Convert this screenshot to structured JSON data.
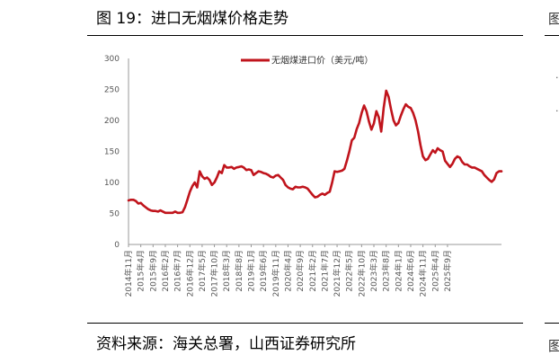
{
  "figure": {
    "title": "图 19：进口无烟煤价格走势",
    "source": "资料来源：海关总署，山西证券研究所",
    "right_edge_glyph": "图",
    "right_edge_marks": [
      "·",
      "·"
    ]
  },
  "chart_data": {
    "type": "line",
    "title": "",
    "xlabel": "",
    "ylabel": "",
    "ylim": [
      0,
      300
    ],
    "yticks": [
      0,
      50,
      100,
      150,
      200,
      250,
      300
    ],
    "grid": false,
    "legend_position": "top-center",
    "x_tick_labels": [
      "2014年11月",
      "2015年4月",
      "2015年9月",
      "2016年2月",
      "2016年7月",
      "2016年12月",
      "2017年5月",
      "2017年10月",
      "2018年3月",
      "2018年8月",
      "2019年1月",
      "2019年6月",
      "2019年11月",
      "2020年4月",
      "2020年9月",
      "2021年2月",
      "2021年7月",
      "2021年12月",
      "2022年5月",
      "2022年10月",
      "2023年3月",
      "2023年8月",
      "2024年1月",
      "2024年6月",
      "2024年11月",
      "2025年4月",
      "2025年9月"
    ],
    "series": [
      {
        "name": "无烟煤进口价（美元/吨）",
        "color": "#c0141c",
        "start": "2014年11月",
        "end": "2025年9月",
        "frequency": "monthly",
        "values": [
          71,
          72,
          72,
          70,
          66,
          67,
          63,
          60,
          57,
          55,
          54,
          54,
          53,
          55,
          53,
          51,
          51,
          51,
          51,
          53,
          51,
          51,
          52,
          60,
          72,
          85,
          94,
          100,
          92,
          118,
          110,
          106,
          108,
          104,
          96,
          100,
          108,
          118,
          115,
          128,
          124,
          124,
          125,
          122,
          124,
          125,
          126,
          124,
          120,
          121,
          120,
          112,
          115,
          118,
          117,
          115,
          114,
          112,
          109,
          108,
          111,
          112,
          108,
          104,
          96,
          92,
          90,
          89,
          93,
          92,
          92,
          93,
          92,
          90,
          85,
          80,
          76,
          77,
          80,
          82,
          80,
          83,
          85,
          100,
          118,
          117,
          118,
          119,
          122,
          135,
          150,
          168,
          172,
          186,
          196,
          212,
          224,
          215,
          198,
          185,
          195,
          215,
          205,
          182,
          220,
          248,
          238,
          218,
          200,
          192,
          196,
          208,
          218,
          226,
          222,
          220,
          212,
          200,
          182,
          160,
          142,
          136,
          138,
          145,
          152,
          148,
          155,
          152,
          150,
          135,
          130,
          125,
          130,
          138,
          142,
          140,
          133,
          129,
          129,
          126,
          124,
          124,
          122,
          120,
          118,
          112,
          108,
          104,
          101,
          105,
          115,
          118,
          118
        ]
      }
    ]
  }
}
